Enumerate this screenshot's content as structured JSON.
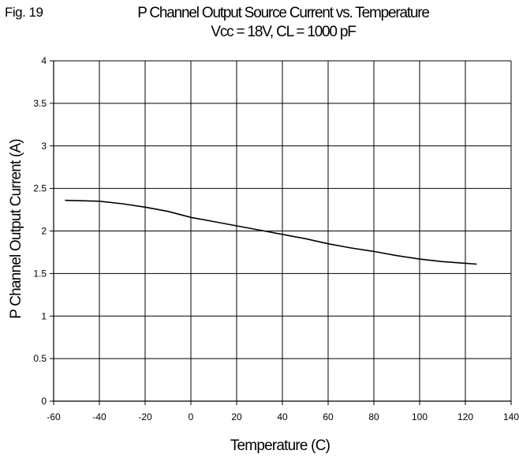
{
  "figure_label": "Fig. 19",
  "chart_data": {
    "type": "line",
    "title": "P Channel Output Source Current vs. Temperature",
    "subtitle": "Vcc = 18V, CL = 1000 pF",
    "xlabel": "Temperature (C)",
    "ylabel": "P Channel Output Current (A)",
    "xlim": [
      -60,
      140
    ],
    "ylim": [
      0,
      4
    ],
    "xticks": [
      -60,
      -40,
      -20,
      0,
      20,
      40,
      60,
      80,
      100,
      120,
      140
    ],
    "yticks": [
      0,
      0.5,
      1,
      1.5,
      2,
      2.5,
      3,
      3.5,
      4
    ],
    "xtick_labels": [
      "-60",
      "-40",
      "-20",
      "0",
      "20",
      "40",
      "60",
      "80",
      "100",
      "120",
      "140"
    ],
    "ytick_labels": [
      "0",
      "0.5",
      "1",
      "1.5",
      "2",
      "2.5",
      "3",
      "3.5",
      "4"
    ],
    "grid": true,
    "series": [
      {
        "x": [
          -55,
          -40,
          -30,
          -20,
          -10,
          0,
          10,
          20,
          30,
          40,
          50,
          60,
          70,
          80,
          90,
          100,
          110,
          120,
          125
        ],
        "y": [
          2.36,
          2.35,
          2.32,
          2.28,
          2.23,
          2.16,
          2.11,
          2.06,
          2.01,
          1.96,
          1.91,
          1.85,
          1.8,
          1.76,
          1.71,
          1.67,
          1.64,
          1.62,
          1.61
        ]
      }
    ]
  }
}
